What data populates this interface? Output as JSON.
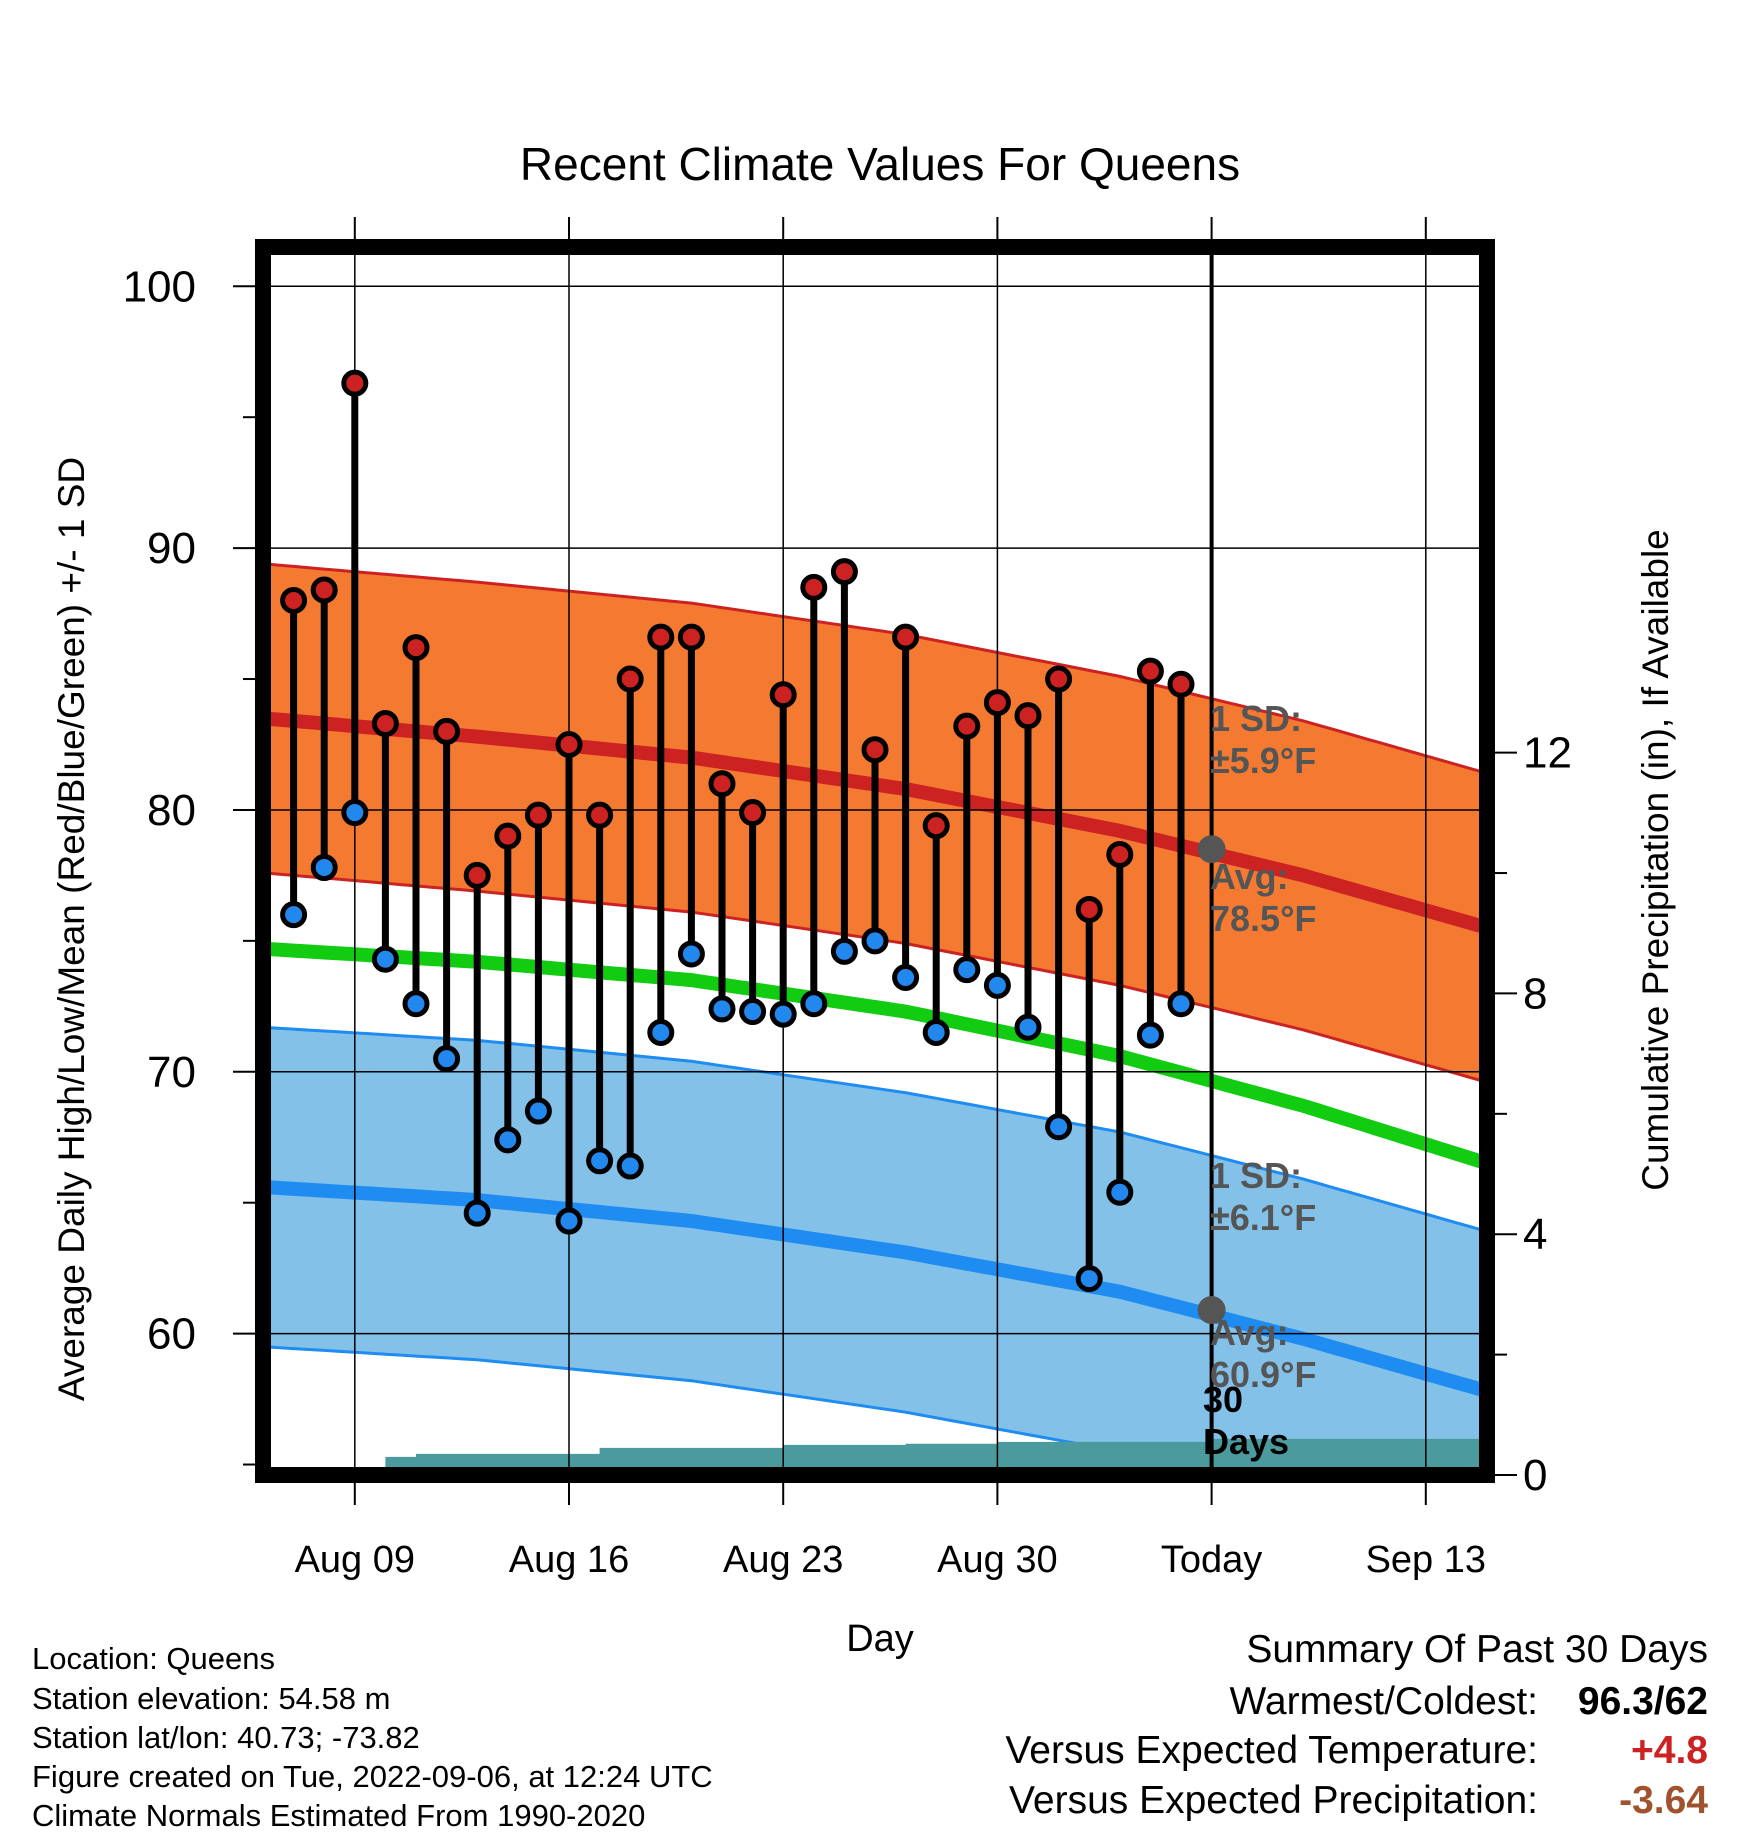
{
  "chart_data": {
    "type": "line",
    "title": "Recent Climate Values For Queens",
    "xlabel": "Day",
    "ylabel": "Average Daily High/Low/Mean (Red/Blue/Green) +/- 1 SD",
    "y2label": "Cumulative Precipitation (in), If Available",
    "ylim": [
      54.6,
      101.5
    ],
    "y2lim": [
      0,
      20.4
    ],
    "yticks": [
      60,
      70,
      80,
      90,
      100
    ],
    "y2ticks": [
      0,
      4,
      8,
      12
    ],
    "xlim": [
      "2022-08-06",
      "2022-09-15"
    ],
    "xticks": [
      {
        "date": "2022-08-09",
        "label": "Aug 09"
      },
      {
        "date": "2022-08-16",
        "label": "Aug 16"
      },
      {
        "date": "2022-08-23",
        "label": "Aug 23"
      },
      {
        "date": "2022-08-30",
        "label": "Aug 30"
      },
      {
        "date": "2022-09-06",
        "label": "Today"
      },
      {
        "date": "2022-09-13",
        "label": "Sep 13"
      }
    ],
    "grid": true,
    "today": "2022-09-06",
    "today_label_line1": "30",
    "today_label_line2": "Days",
    "normals": {
      "dates": [
        "2022-08-06",
        "2022-08-13",
        "2022-08-20",
        "2022-08-27",
        "2022-09-03",
        "2022-09-09",
        "2022-09-15"
      ],
      "high_avg": [
        83.5,
        82.8,
        82.0,
        80.8,
        79.2,
        77.5,
        75.5
      ],
      "high_sd": 5.9,
      "mean_avg": [
        74.7,
        74.2,
        73.5,
        72.3,
        70.6,
        68.7,
        66.5
      ],
      "low_avg": [
        65.6,
        65.1,
        64.3,
        63.1,
        61.6,
        59.8,
        57.8
      ],
      "low_sd": 6.1,
      "high_today_label": "Avg:",
      "high_today_value": "78.5°F",
      "high_sd_label": "1 SD:",
      "high_sd_value": "±5.9°F",
      "low_today_label": "Avg:",
      "low_today_value": "60.9°F",
      "low_sd_label": "1 SD:",
      "low_sd_value": "±6.1°F",
      "today_high_avg": 78.5,
      "today_low_avg": 60.9
    },
    "series": [
      {
        "name": "High",
        "color": "#cc2222",
        "x": [
          "2022-08-07",
          "2022-08-08",
          "2022-08-09",
          "2022-08-10",
          "2022-08-11",
          "2022-08-12",
          "2022-08-13",
          "2022-08-14",
          "2022-08-15",
          "2022-08-16",
          "2022-08-17",
          "2022-08-18",
          "2022-08-19",
          "2022-08-20",
          "2022-08-21",
          "2022-08-22",
          "2022-08-23",
          "2022-08-24",
          "2022-08-25",
          "2022-08-26",
          "2022-08-27",
          "2022-08-28",
          "2022-08-29",
          "2022-08-30",
          "2022-08-31",
          "2022-09-01",
          "2022-09-02",
          "2022-09-03",
          "2022-09-04",
          "2022-09-05"
        ],
        "values": [
          88.0,
          88.4,
          96.3,
          83.3,
          86.2,
          83.0,
          77.5,
          79.0,
          79.8,
          82.5,
          79.8,
          85.0,
          86.6,
          86.6,
          81.0,
          79.9,
          84.4,
          88.5,
          89.1,
          82.3,
          86.6,
          79.4,
          83.2,
          84.1,
          83.6,
          85.0,
          76.2,
          78.3,
          85.3,
          84.8
        ]
      },
      {
        "name": "Low",
        "color": "#2288ee",
        "x": [
          "2022-08-07",
          "2022-08-08",
          "2022-08-09",
          "2022-08-10",
          "2022-08-11",
          "2022-08-12",
          "2022-08-13",
          "2022-08-14",
          "2022-08-15",
          "2022-08-16",
          "2022-08-17",
          "2022-08-18",
          "2022-08-19",
          "2022-08-20",
          "2022-08-21",
          "2022-08-22",
          "2022-08-23",
          "2022-08-24",
          "2022-08-25",
          "2022-08-26",
          "2022-08-27",
          "2022-08-28",
          "2022-08-29",
          "2022-08-30",
          "2022-08-31",
          "2022-09-01",
          "2022-09-02",
          "2022-09-03",
          "2022-09-04",
          "2022-09-05"
        ],
        "values": [
          76.0,
          77.8,
          79.9,
          74.3,
          72.6,
          70.5,
          64.6,
          67.4,
          68.5,
          64.3,
          66.6,
          66.4,
          71.5,
          74.5,
          72.4,
          72.3,
          72.2,
          72.6,
          74.6,
          75.0,
          73.6,
          71.5,
          73.9,
          73.3,
          71.7,
          67.9,
          62.1,
          65.4,
          71.4,
          72.6
        ]
      }
    ],
    "precip_cumulative": {
      "x": [
        "2022-08-06",
        "2022-08-07",
        "2022-08-08",
        "2022-08-09",
        "2022-08-10",
        "2022-08-11",
        "2022-08-16",
        "2022-08-17",
        "2022-08-23",
        "2022-08-27",
        "2022-08-30",
        "2022-09-06",
        "2022-09-15"
      ],
      "values": [
        0,
        0,
        0,
        0,
        0.3,
        0.35,
        0.35,
        0.45,
        0.5,
        0.52,
        0.55,
        0.6,
        0.6
      ]
    }
  },
  "colors": {
    "high_band": "#f47a32",
    "high_line": "#cc2222",
    "low_band": "#84c1e8",
    "low_line": "#1e8cf0",
    "mean_line": "#11cc11",
    "precip": "#4a9a9e",
    "marker": "#555555",
    "warm": "#cc2222",
    "precip_text": "#a0522d"
  },
  "info": {
    "location": "Location: Queens",
    "elevation": "Station elevation: 54.58 m",
    "latlon": "Station lat/lon: 40.73; -73.82",
    "created": "Figure created on Tue, 2022-09-06, at 12:24 UTC",
    "normals": "Climate Normals Estimated From 1990-2020"
  },
  "summary": {
    "title": "Summary Of Past 30 Days",
    "warm_label": "Warmest/Coldest:",
    "warm_value": "96.3/62",
    "temp_label": "Versus Expected Temperature:",
    "temp_value": "+4.8",
    "precip_label": "Versus Expected Precipitation:",
    "precip_value": "-3.64"
  }
}
